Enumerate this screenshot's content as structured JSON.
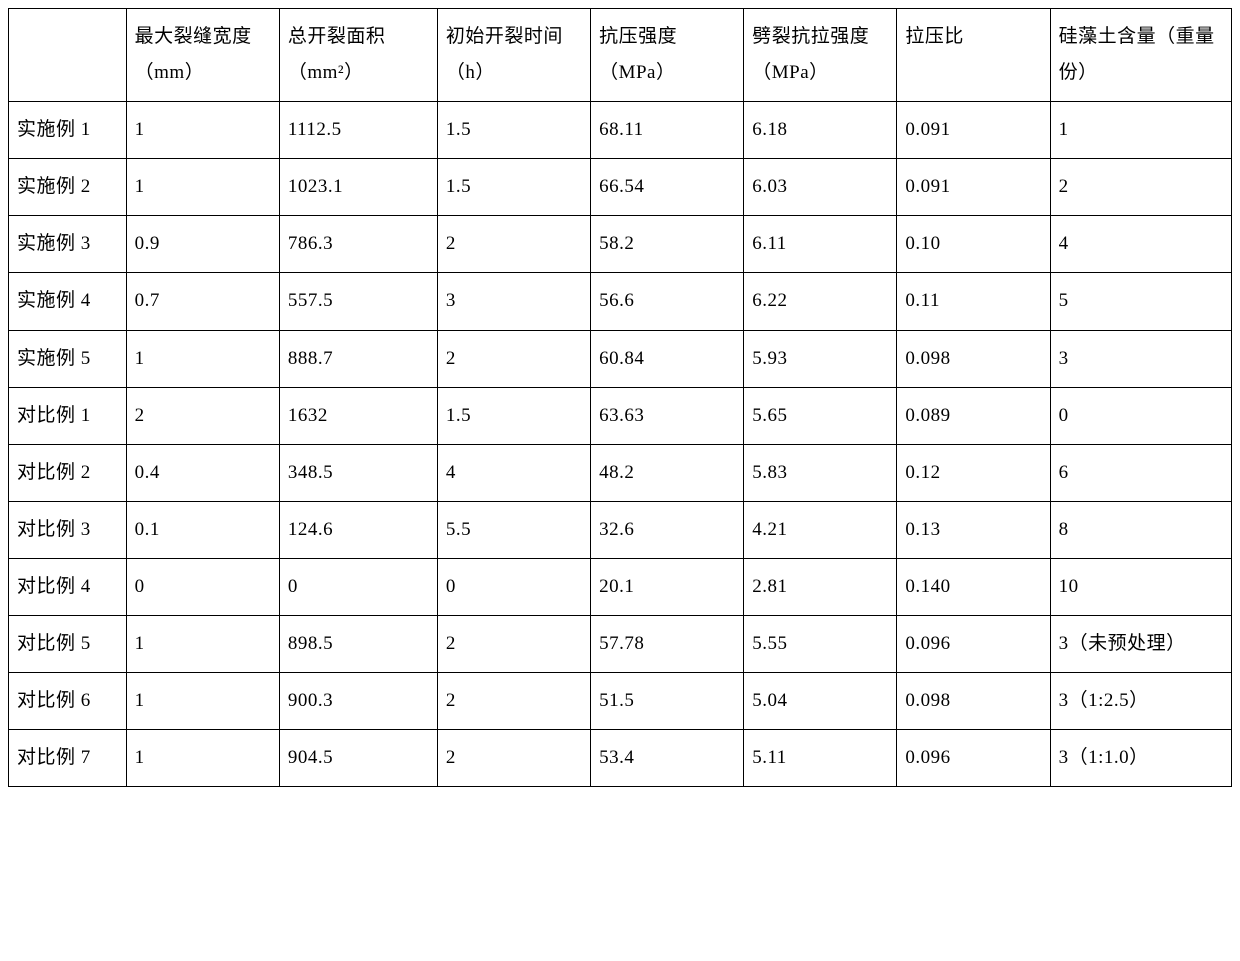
{
  "table": {
    "type": "table",
    "background_color": "#ffffff",
    "border_color": "#000000",
    "text_color": "#000000",
    "font_family": "SimSun",
    "cell_fontsize": 19,
    "header_fontsize": 19,
    "line_height": 1.9,
    "columns": [
      {
        "key": "label",
        "header": "",
        "width_pct": 9.6,
        "align": "left"
      },
      {
        "key": "c1",
        "header": "最大裂缝宽度（mm）",
        "width_pct": 12.5,
        "align": "left"
      },
      {
        "key": "c2",
        "header": "总开裂面积（mm²）",
        "width_pct": 12.9,
        "align": "left"
      },
      {
        "key": "c3",
        "header": "初始开裂时间（h）",
        "width_pct": 12.5,
        "align": "left"
      },
      {
        "key": "c4",
        "header": "抗压强度（MPa）",
        "width_pct": 12.5,
        "align": "left"
      },
      {
        "key": "c5",
        "header": "劈裂抗拉强度（MPa）",
        "width_pct": 12.5,
        "align": "left"
      },
      {
        "key": "c6",
        "header": "拉压比",
        "width_pct": 12.5,
        "align": "left"
      },
      {
        "key": "c7",
        "header": "硅藻土含量（重量份）",
        "width_pct": 14.8,
        "align": "left"
      }
    ],
    "rows": [
      {
        "label": "实施例 1",
        "c1": "1",
        "c2": "1112.5",
        "c3": "1.5",
        "c4": "68.11",
        "c5": "6.18",
        "c6": "0.091",
        "c7": "1"
      },
      {
        "label": "实施例 2",
        "c1": "1",
        "c2": "1023.1",
        "c3": "1.5",
        "c4": "66.54",
        "c5": "6.03",
        "c6": "0.091",
        "c7": "2"
      },
      {
        "label": "实施例 3",
        "c1": "0.9",
        "c2": "786.3",
        "c3": "2",
        "c4": "58.2",
        "c5": "6.11",
        "c6": "0.10",
        "c7": "4"
      },
      {
        "label": "实施例 4",
        "c1": "0.7",
        "c2": "557.5",
        "c3": "3",
        "c4": "56.6",
        "c5": "6.22",
        "c6": "0.11",
        "c7": "5"
      },
      {
        "label": "实施例 5",
        "c1": "1",
        "c2": "888.7",
        "c3": "2",
        "c4": "60.84",
        "c5": "5.93",
        "c6": "0.098",
        "c7": "3"
      },
      {
        "label": "对比例 1",
        "c1": "2",
        "c2": "1632",
        "c3": "1.5",
        "c4": "63.63",
        "c5": "5.65",
        "c6": "0.089",
        "c7": "0"
      },
      {
        "label": "对比例 2",
        "c1": "0.4",
        "c2": "348.5",
        "c3": "4",
        "c4": "48.2",
        "c5": "5.83",
        "c6": "0.12",
        "c7": "6"
      },
      {
        "label": "对比例 3",
        "c1": "0.1",
        "c2": "124.6",
        "c3": "5.5",
        "c4": "32.6",
        "c5": "4.21",
        "c6": "0.13",
        "c7": "8"
      },
      {
        "label": "对比例 4",
        "c1": "0",
        "c2": "0",
        "c3": "0",
        "c4": "20.1",
        "c5": "2.81",
        "c6": "0.140",
        "c7": "10"
      },
      {
        "label": "对比例 5",
        "c1": "1",
        "c2": "898.5",
        "c3": "2",
        "c4": "57.78",
        "c5": "5.55",
        "c6": "0.096",
        "c7": "3（未预处理）"
      },
      {
        "label": "对比例 6",
        "c1": "1",
        "c2": "900.3",
        "c3": "2",
        "c4": "51.5",
        "c5": "5.04",
        "c6": "0.098",
        "c7": "3（1:2.5）"
      },
      {
        "label": "对比例 7",
        "c1": "1",
        "c2": "904.5",
        "c3": "2",
        "c4": "53.4",
        "c5": "5.11",
        "c6": "0.096",
        "c7": "3（1:1.0）"
      }
    ]
  }
}
